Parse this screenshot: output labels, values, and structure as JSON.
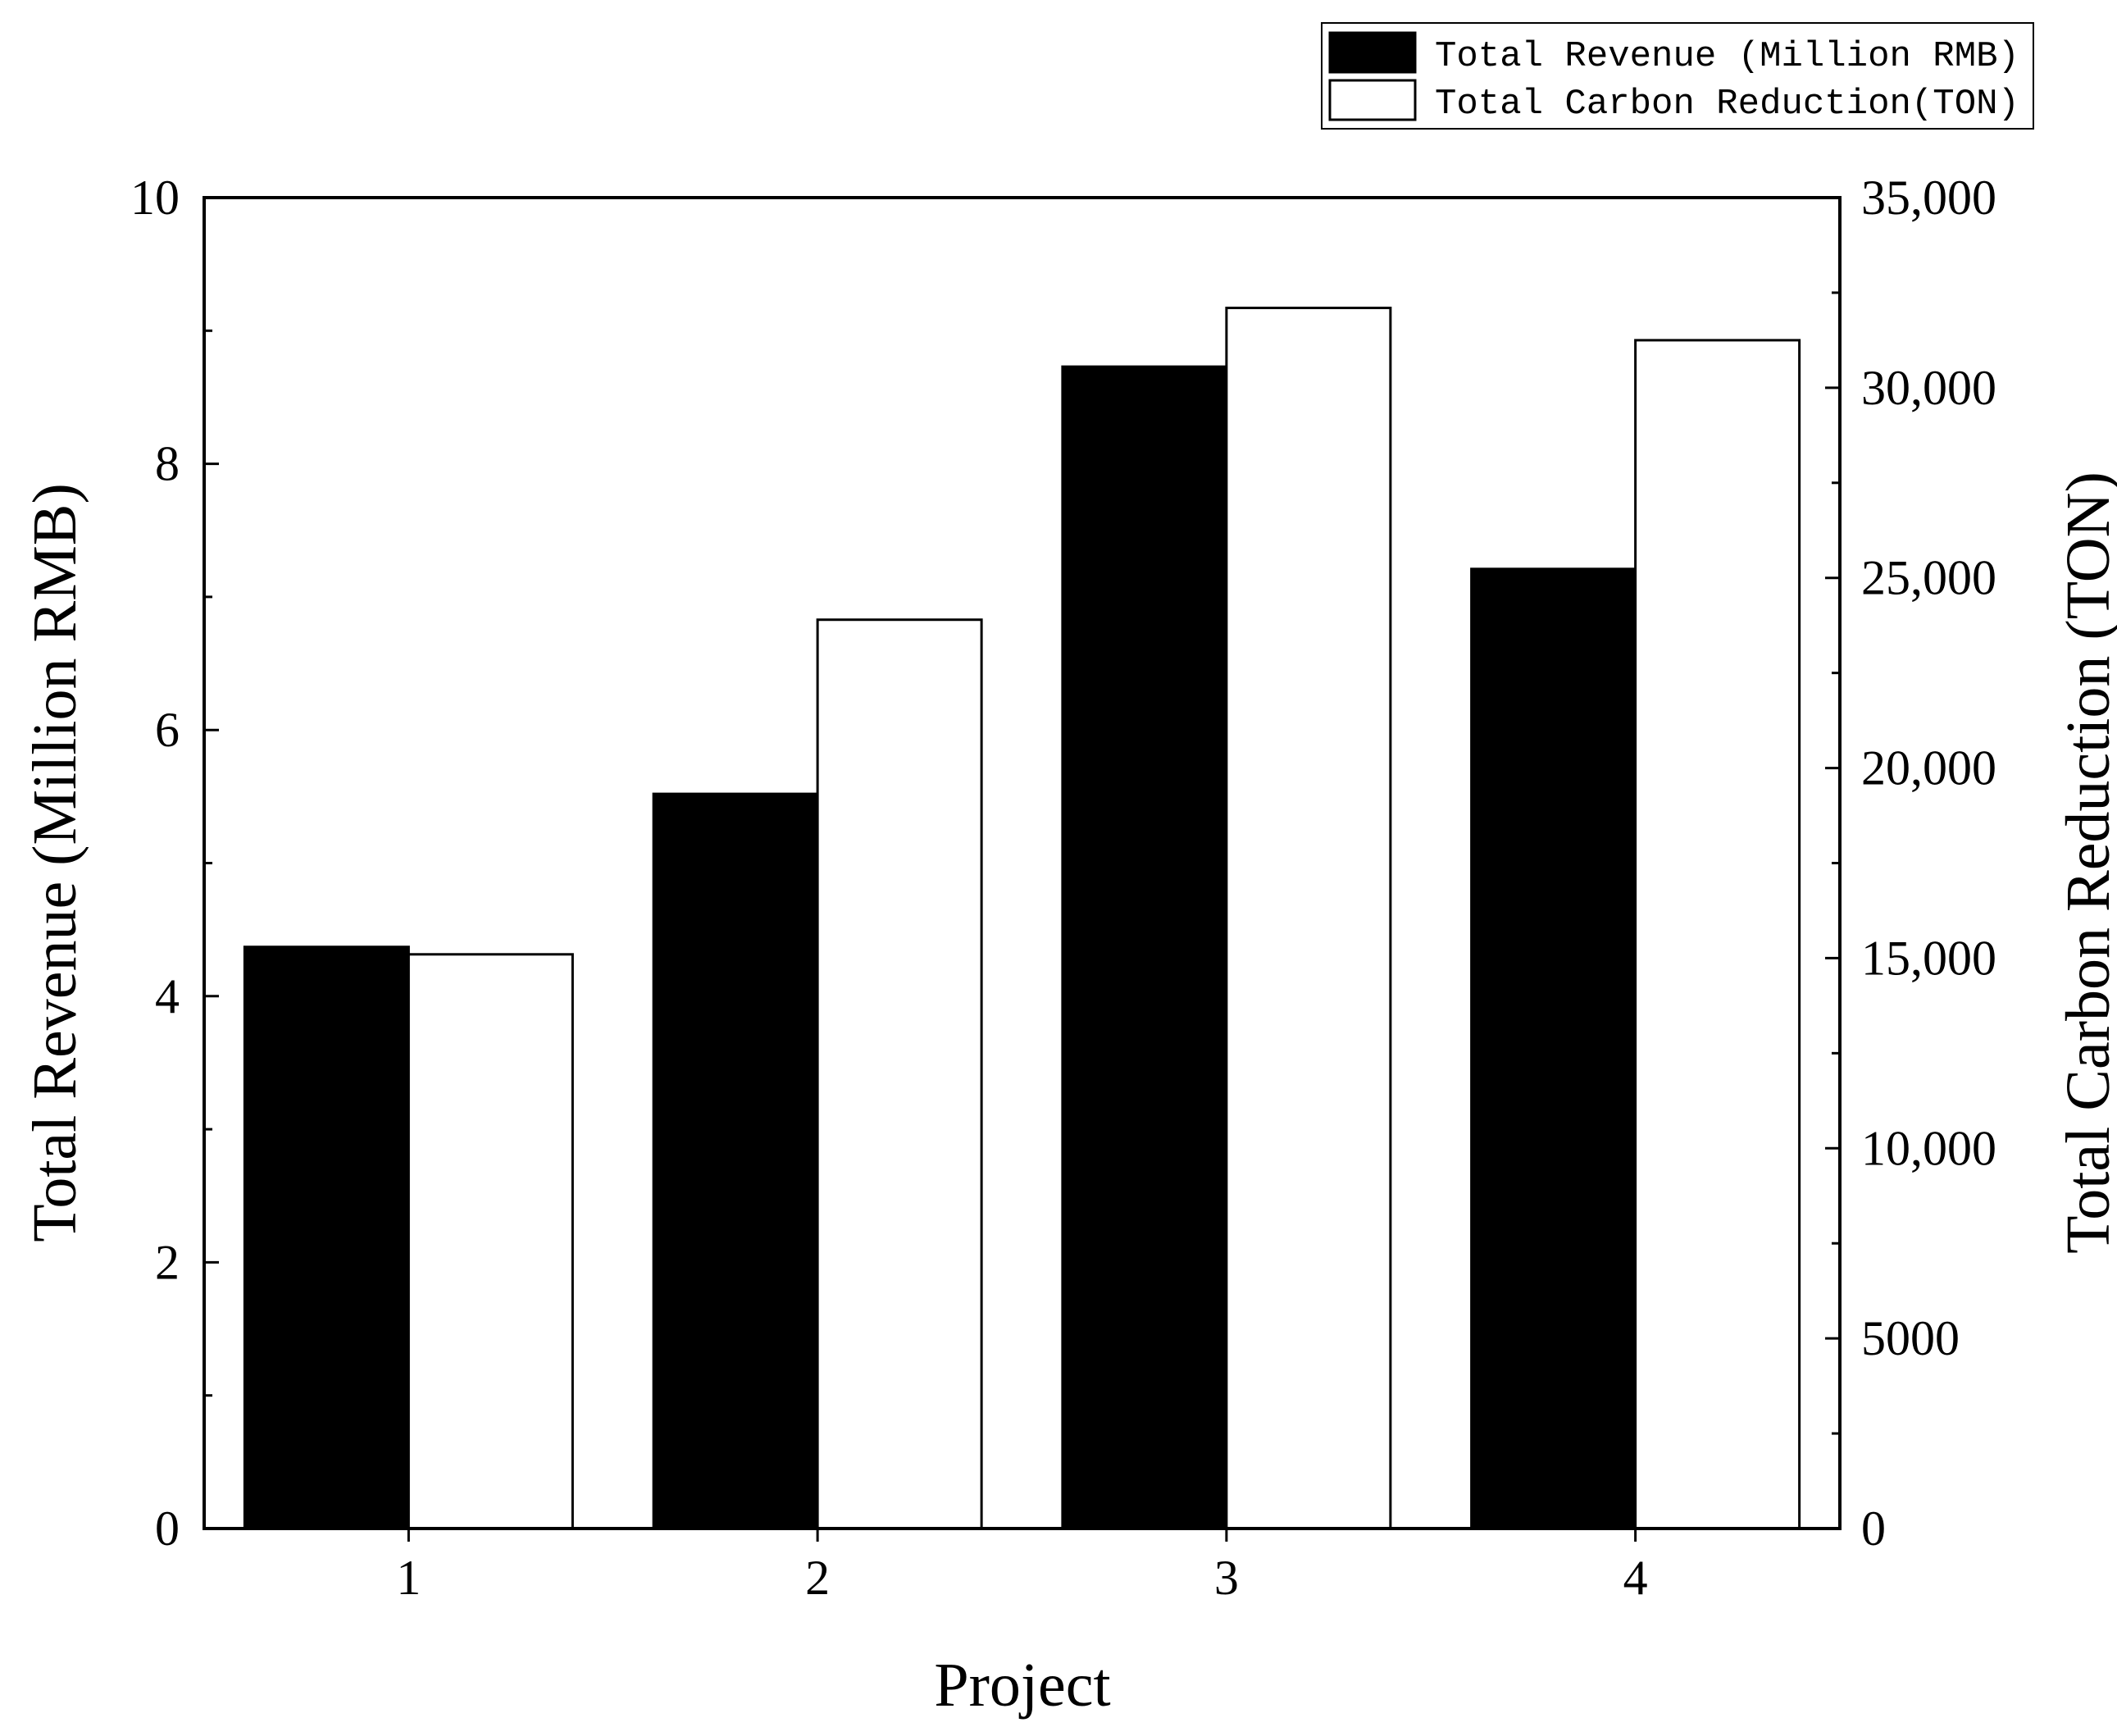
{
  "chart_data": {
    "type": "bar",
    "xlabel": "Project",
    "ylabel_left": "Total Revenue (Million RMB)",
    "ylabel_right": "Total Carbon Reduction (TON)",
    "categories": [
      "1",
      "2",
      "3",
      "4"
    ],
    "ylim_left": [
      0,
      10
    ],
    "ylim_right": [
      0,
      35000
    ],
    "left_ticks": [
      {
        "value": 0,
        "label": "0"
      },
      {
        "value": 2,
        "label": "2"
      },
      {
        "value": 4,
        "label": "4"
      },
      {
        "value": 6,
        "label": "6"
      },
      {
        "value": 8,
        "label": "8"
      },
      {
        "value": 10,
        "label": "10"
      }
    ],
    "right_ticks": [
      {
        "value": 0,
        "label": "0"
      },
      {
        "value": 5000,
        "label": "5000"
      },
      {
        "value": 10000,
        "label": "10,000"
      },
      {
        "value": 15000,
        "label": "15,000"
      },
      {
        "value": 20000,
        "label": "20,000"
      },
      {
        "value": 25000,
        "label": "25,000"
      },
      {
        "value": 30000,
        "label": "30,000"
      },
      {
        "value": 35000,
        "label": "35,000"
      }
    ],
    "series": [
      {
        "name": "Total Revenue (Million RMB)",
        "axis": "left",
        "fill": "#000000",
        "values": [
          4.37,
          5.52,
          8.73,
          7.21
        ]
      },
      {
        "name": "Total Carbon Reduction(TON)",
        "axis": "right",
        "fill": "#ffffff",
        "values": [
          15100,
          23900,
          32100,
          31250
        ]
      }
    ],
    "grid": false,
    "legend_position": "top-right"
  }
}
